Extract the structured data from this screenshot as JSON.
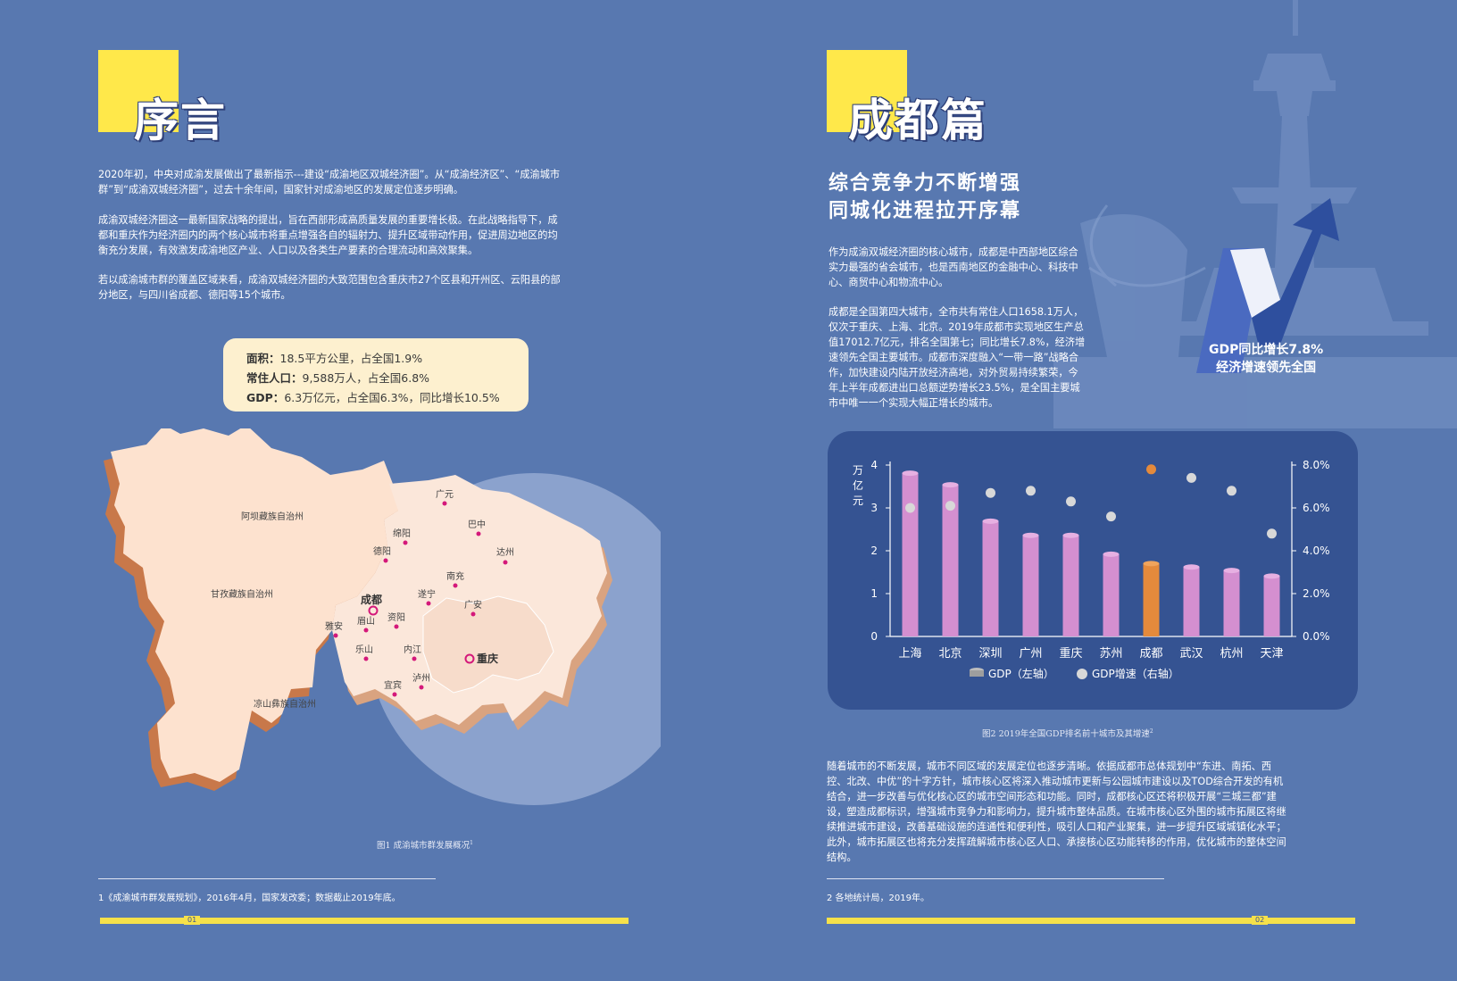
{
  "left_page": {
    "title": "序言",
    "paragraphs": [
      [
        "2020年初，中央对成渝发展做出了最新指示---建设“成渝地区双城经济圈”。从“成渝经济区”、“成渝城市",
        "群”到“成渝双城经济圈”，过去十余年间，国家针对成渝地区的发展定位逐步明确。"
      ],
      [
        "成渝双城经济圈这一最新国家战略的提出，旨在西部形成高质量发展的重要增长极。在此战略指导下，成",
        "都和重庆作为经济圈内的两个核心城市将重点增强各自的辐射力、提升区域带动作用，促进周边地区的均",
        "衡充分发展，有效激发成渝地区产业、人口以及各类生产要素的合理流动和高效聚集。"
      ],
      [
        "若以成渝城市群的覆盖区域来看，成渝双城经济圈的大致范围包含重庆市27个区县和开州区、云阳县的部",
        "分地区，与四川省成都、德阳等15个城市。"
      ]
    ],
    "stats": [
      {
        "label": "面积：",
        "value": "18.5平方公里，占全国1.9%"
      },
      {
        "label": "常住人口：",
        "value": "9,588万人，占全国6.8%"
      },
      {
        "label": "GDP：",
        "value": "6.3万亿元，占全国6.3%，同比增长10.5%"
      }
    ],
    "map_labels": {
      "aba": "阿坝藏族自治州",
      "ganzi": "甘孜藏族自治州",
      "liangshan": "凉山彝族自治州",
      "guangyuan": "广元",
      "bazhong": "巴中",
      "mianyang": "绵阳",
      "deyang": "德阳",
      "dazhou": "达州",
      "chengdu": "成都",
      "nanchong": "南充",
      "suining": "遂宁",
      "guangan": "广安",
      "yaan": "雅安",
      "meishan": "眉山",
      "ziyang": "资阳",
      "leshan": "乐山",
      "neijiang": "内江",
      "chongqing": "重庆",
      "yibin": "宜宾",
      "luzhou": "泸州"
    },
    "figure_caption": "图1  成渝城市群发展概况",
    "caption_ref": "1",
    "footnote": "1《成渝城市群发展规划》，2016年4月，国家发改委；数据截止2019年底。",
    "page_number": "01"
  },
  "right_page": {
    "title": "成都篇",
    "subtitle_lines": [
      "综合竞争力不断增强",
      "同城化进程拉开序幕"
    ],
    "paragraph1": [
      "作为成渝双城经济圈的核心城市，成都是中西部地区综合",
      "实力最强的省会城市，也是西南地区的金融中心、科技中",
      "心、商贸中心和物流中心。"
    ],
    "paragraph2": [
      "成都是全国第四大城市，全市共有常住人口1658.1万人，",
      "仅次于重庆、上海、北京。2019年成都市实现地区生产总",
      "值17012.7亿元，排名全国第七；同比增长7.8%，经济增",
      "速领先全国主要城市。成都市深度融入“一带一路”战略合",
      "作，加快建设内陆开放经济高地，对外贸易持续繁荣，今",
      "年上半年成都进出口总额逆势增长23.5%，是全国主要城",
      "市中唯一一个实现大幅正增长的城市。"
    ],
    "highlight_lines": [
      "GDP同比增长7.8%",
      "经济增速领先全国"
    ],
    "figure_caption": "图2  2019年全国GDP排名前十城市及其增速",
    "caption_ref": "2",
    "paragraph3": [
      "随着城市的不断发展，城市不同区域的发展定位也逐步清晰。依据成都市总体规划中“东进、南拓、西",
      "控、北改、中优”的十字方针，城市核心区将深入推动城市更新与公园城市建设以及TOD综合开发的有机",
      "结合，进一步改善与优化核心区的城市空间形态和功能。同时，成都核心区还将积极开展“三城三都”建",
      "设，塑造成都标识，增强城市竞争力和影响力，提升城市整体品质。在城市核心区外围的城市拓展区将继",
      "续推进城市建设，改善基础设施的连通性和便利性，吸引人口和产业聚集，进一步提升区域城镇化水平；",
      "此外，城市拓展区也将充分发挥疏解城市核心区人口、承接核心区功能转移的作用，优化城市的整体空间",
      "结构。"
    ],
    "footnote": "2  各地统计局，2019年。",
    "page_number": "02"
  },
  "colors": {
    "background": "#5878b0",
    "accent_yellow": "#ffe84a",
    "bar_purple": "#d48fd0",
    "bar_orange": "#e48a3c",
    "dot_gray": "#d8d8d8",
    "chart_bg": "#355392"
  },
  "chart_data": {
    "type": "bar",
    "categories": [
      "上海",
      "北京",
      "深圳",
      "广州",
      "重庆",
      "苏州",
      "成都",
      "武汉",
      "杭州",
      "天津"
    ],
    "ylabel": "万亿元",
    "ylim": [
      0,
      4
    ],
    "yticks": [
      "0",
      "1",
      "2",
      "3",
      "4"
    ],
    "y2lim": [
      0,
      8
    ],
    "y2ticks": [
      "0.0%",
      "2.0%",
      "4.0%",
      "6.0%",
      "8.0%"
    ],
    "highlight": "成都",
    "series": [
      {
        "name": "GDP（左轴）",
        "type": "bar",
        "axis": "left",
        "values": [
          3.81,
          3.54,
          2.69,
          2.36,
          2.36,
          1.92,
          1.7,
          1.62,
          1.54,
          1.41
        ]
      },
      {
        "name": "GDP增速（右轴）",
        "type": "scatter",
        "axis": "right",
        "values": [
          6.0,
          6.1,
          6.7,
          6.8,
          6.3,
          5.6,
          7.8,
          7.4,
          6.8,
          4.8
        ]
      }
    ],
    "legend": "bottom"
  }
}
